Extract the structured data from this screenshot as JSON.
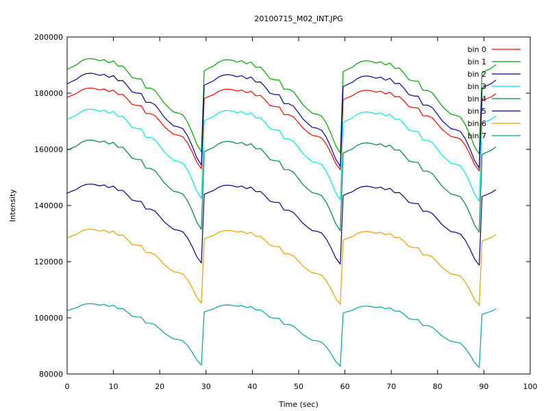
{
  "chart_data": {
    "type": "line",
    "title": "20100715_M02_INT.JPG",
    "xlabel": "Time (sec)",
    "ylabel": "Intensity",
    "xlim": [
      0,
      100
    ],
    "ylim": [
      80000,
      200000
    ],
    "xticks": [
      0,
      10,
      20,
      30,
      40,
      50,
      60,
      70,
      80,
      90,
      100
    ],
    "yticks": [
      80000,
      100000,
      120000,
      140000,
      160000,
      180000,
      200000
    ],
    "grid": false,
    "legend_position": "top-right",
    "profile": {
      "x": [
        0,
        1,
        2,
        3,
        4,
        5,
        6,
        7,
        8,
        9,
        10,
        11,
        12,
        13,
        14,
        15,
        16,
        17,
        18,
        19,
        20,
        21,
        22,
        23,
        24,
        25,
        26,
        27,
        28,
        29
      ],
      "shape": [
        0.63,
        0.71,
        0.78,
        0.9,
        0.97,
        0.99,
        0.97,
        0.92,
        0.96,
        0.86,
        0.92,
        0.75,
        0.76,
        0.59,
        0.39,
        0.35,
        0.34,
        0.05,
        0.05,
        -0.03,
        -0.23,
        -0.44,
        -0.59,
        -0.72,
        -0.75,
        -0.81,
        -1.04,
        -1.37,
        -1.76,
        -2.0
      ]
    },
    "cycles": [
      {
        "start": 0,
        "end": 29,
        "scale": 1.0
      },
      {
        "start": 29.6,
        "end": 59,
        "scale": 1.0
      },
      {
        "start": 59.6,
        "end": 89,
        "scale": 1.0
      },
      {
        "start": 89.6,
        "end": 92.2,
        "scale": 1.0
      }
    ],
    "series": [
      {
        "name": "bin 0",
        "color": "#ff0000",
        "mean": 172500,
        "amp": 9500,
        "drift": -1200
      },
      {
        "name": "bin 1",
        "color": "#00a000",
        "mean": 181500,
        "amp": 11000,
        "drift": -1200
      },
      {
        "name": "bin 2",
        "color": "#0000a0",
        "mean": 176500,
        "amp": 10800,
        "drift": -1500
      },
      {
        "name": "bin 3",
        "color": "#00e5e5",
        "mean": 164000,
        "amp": 10500,
        "drift": -1500
      },
      {
        "name": "bin 4",
        "color": "#008040",
        "mean": 153000,
        "amp": 10500,
        "drift": -1500
      },
      {
        "name": "bin 5",
        "color": "#000080",
        "mean": 138500,
        "amp": 9300,
        "drift": -1200
      },
      {
        "name": "bin 6",
        "color": "#e5a000",
        "mean": 123000,
        "amp": 8700,
        "drift": -1200
      },
      {
        "name": "bin 7",
        "color": "#00a0a0",
        "mean": 98000,
        "amp": 7200,
        "drift": -1300
      }
    ]
  }
}
